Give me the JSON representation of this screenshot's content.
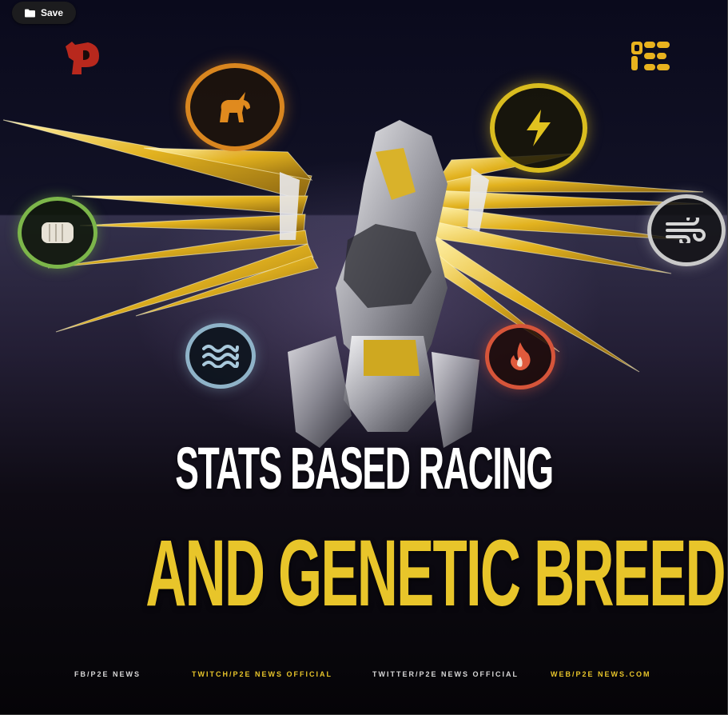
{
  "toolbar": {
    "save_label": "Save",
    "save_icon": "folder-icon"
  },
  "brand": {
    "left_logo_icon": "horse-p-logo-icon",
    "right_logo_icon": "p2e-logo-icon"
  },
  "colors": {
    "accent_yellow": "#e8c52a",
    "white": "#ffffff",
    "background": "#07060d"
  },
  "stat_icons": [
    {
      "name": "unicorn",
      "color": "#d9861f"
    },
    {
      "name": "lightning",
      "color": "#e1c21f"
    },
    {
      "name": "fist",
      "color": "#7cb64a"
    },
    {
      "name": "wind",
      "color": "#c9c9c9"
    },
    {
      "name": "water",
      "color": "#8fb3c8"
    },
    {
      "name": "fire",
      "color": "#d6553a"
    }
  ],
  "headline": {
    "line1": "STATS BASED RACING",
    "line2": "AND GENETIC BREEDING"
  },
  "footer": {
    "fb": "FB/P2E NEWS",
    "twitch": "TWITCH/P2E NEWS OFFICIAL",
    "twitter": "TWITTER/P2E NEWS OFFICIAL",
    "web": "WEB/P2E NEWS.COM"
  }
}
